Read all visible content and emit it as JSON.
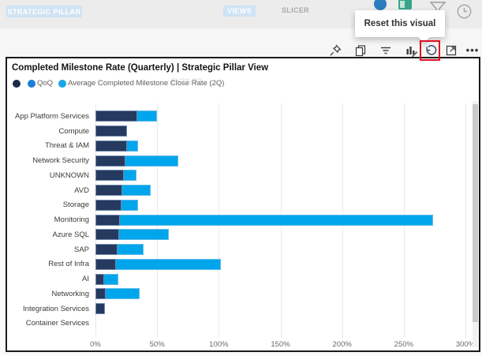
{
  "header": {
    "pillar_button": "STRATEGIC PILLAR",
    "views_button": "VIEWS",
    "slicer_label": "SLICER",
    "tooltip_text": "Reset this visual",
    "icon_names": [
      "info-icon",
      "chart-green-icon",
      "filter-funnel-icon",
      "clock-icon"
    ]
  },
  "toolbar": {
    "icon_names": [
      "pin-icon",
      "copy-icon",
      "filter-lines-icon",
      "personalize-icon",
      "reset-icon",
      "focus-mode-icon",
      "more-options-icon"
    ],
    "more_glyph": "•••",
    "highlight_color": "#e0101f"
  },
  "visual": {
    "title": "Completed Milestone Rate (Quarterly) | Strategic Pillar View",
    "watermark": "FY23-Q2",
    "legend": [
      {
        "label": "",
        "color": "#1a2b4a"
      },
      {
        "label": "QoQ",
        "color": "#1b7fd4"
      },
      {
        "label": "Average Completed Milestone Close Rate (2Q)",
        "color": "#18a5e8"
      }
    ]
  },
  "chart_data": {
    "type": "bar",
    "orientation": "horizontal",
    "stacked": true,
    "title": "Completed Milestone Rate (Quarterly) | Strategic Pillar View",
    "categories": [
      "App Platform Services",
      "Compute",
      "Threat & IAM",
      "Network Security",
      "UNKNOWN",
      "AVD",
      "Storage",
      "Monitoring",
      "Azure SQL",
      "SAP",
      "Rest of Infra",
      "AI",
      "Networking",
      "Integration Services",
      "Container Services"
    ],
    "series": [
      {
        "name": "",
        "color": "#263a5f",
        "values": [
          34,
          25.5,
          25.5,
          24,
          23,
          21.5,
          21,
          20,
          19,
          18,
          16.5,
          7,
          8,
          7.5,
          0
        ]
      },
      {
        "name": "Average Completed Milestone Close Rate (2Q)",
        "color": "#00a6eb",
        "values": [
          16,
          0,
          9,
          43,
          10.5,
          23.5,
          13.5,
          254,
          40.5,
          21,
          85,
          11.5,
          28,
          0,
          0
        ]
      }
    ],
    "totals_pct": [
      50,
      25.5,
      34.5,
      67,
      33.5,
      45,
      34.5,
      274,
      59.5,
      39,
      101.5,
      18.5,
      36,
      7.5,
      0
    ],
    "x_ticks": [
      "0%",
      "50%",
      "100%",
      "150%",
      "200%",
      "250%",
      "300%"
    ],
    "xlim": [
      0,
      300
    ],
    "grid": true,
    "legend_position": "top"
  }
}
